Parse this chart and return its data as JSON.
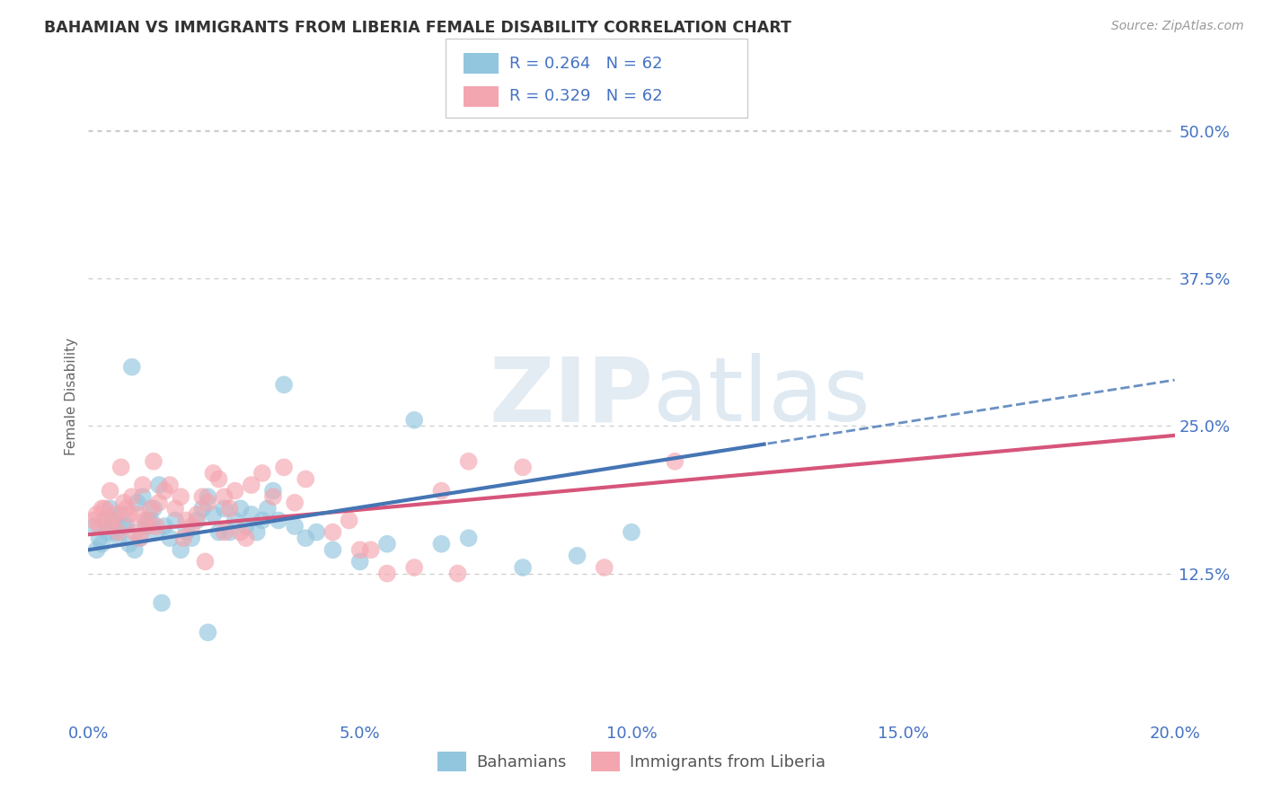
{
  "title": "BAHAMIAN VS IMMIGRANTS FROM LIBERIA FEMALE DISABILITY CORRELATION CHART",
  "source": "Source: ZipAtlas.com",
  "xlabel_vals": [
    0.0,
    5.0,
    10.0,
    15.0,
    20.0
  ],
  "ylabel_vals": [
    12.5,
    25.0,
    37.5,
    50.0
  ],
  "ylabel_labels": [
    "12.5%",
    "25.0%",
    "37.5%",
    "50.0%"
  ],
  "xmin": 0.0,
  "xmax": 20.0,
  "ymin": 0.0,
  "ymax": 55.0,
  "R_blue": 0.264,
  "N_blue": 62,
  "R_pink": 0.329,
  "N_pink": 62,
  "legend_label_blue": "Bahamians",
  "legend_label_pink": "Immigrants from Liberia",
  "blue_color": "#92c5de",
  "pink_color": "#f4a6b0",
  "blue_line_color": "#4575b4",
  "pink_line_color": "#d6557a",
  "blue_line_intercept": 14.5,
  "blue_line_slope": 0.72,
  "pink_line_intercept": 15.8,
  "pink_line_slope": 0.42,
  "blue_solid_end": 12.5,
  "blue_scatter_x": [
    0.1,
    0.2,
    0.3,
    0.4,
    0.5,
    0.6,
    0.7,
    0.8,
    0.9,
    1.0,
    1.1,
    1.2,
    1.3,
    1.4,
    1.5,
    1.6,
    1.7,
    1.8,
    1.9,
    2.0,
    2.1,
    2.2,
    2.3,
    2.4,
    2.5,
    2.6,
    2.7,
    2.8,
    2.9,
    3.0,
    3.1,
    3.2,
    3.3,
    3.4,
    3.5,
    3.6,
    3.8,
    4.0,
    4.2,
    4.5,
    5.0,
    5.5,
    6.0,
    6.5,
    7.0,
    8.0,
    9.0,
    10.0,
    0.15,
    0.25,
    0.35,
    0.45,
    0.55,
    0.65,
    0.75,
    0.85,
    0.95,
    1.05,
    1.15,
    1.25,
    1.35,
    2.2
  ],
  "blue_scatter_y": [
    16.5,
    15.5,
    17.0,
    18.0,
    16.0,
    17.5,
    16.5,
    30.0,
    18.5,
    19.0,
    17.0,
    18.0,
    20.0,
    16.5,
    15.5,
    17.0,
    14.5,
    16.0,
    15.5,
    17.0,
    18.0,
    19.0,
    17.5,
    16.0,
    18.0,
    16.0,
    17.0,
    18.0,
    16.5,
    17.5,
    16.0,
    17.0,
    18.0,
    19.5,
    17.0,
    28.5,
    16.5,
    15.5,
    16.0,
    14.5,
    13.5,
    15.0,
    25.5,
    15.0,
    15.5,
    13.0,
    14.0,
    16.0,
    14.5,
    15.0,
    16.0,
    17.0,
    15.5,
    16.5,
    15.0,
    14.5,
    15.5,
    16.5,
    17.0,
    16.0,
    10.0,
    7.5
  ],
  "pink_scatter_x": [
    0.1,
    0.2,
    0.3,
    0.4,
    0.5,
    0.6,
    0.7,
    0.8,
    0.9,
    1.0,
    1.1,
    1.2,
    1.3,
    1.4,
    1.5,
    1.6,
    1.7,
    1.8,
    1.9,
    2.0,
    2.1,
    2.2,
    2.3,
    2.4,
    2.5,
    2.6,
    2.7,
    2.8,
    2.9,
    3.0,
    3.2,
    3.4,
    3.6,
    3.8,
    4.0,
    4.5,
    5.0,
    5.5,
    6.0,
    6.5,
    7.0,
    8.0,
    9.5,
    0.15,
    0.25,
    0.35,
    0.45,
    0.55,
    0.65,
    0.75,
    0.85,
    0.95,
    1.05,
    1.15,
    1.25,
    1.75,
    2.15,
    4.8,
    5.2,
    6.8,
    10.8,
    2.5
  ],
  "pink_scatter_y": [
    17.0,
    16.5,
    18.0,
    19.5,
    17.5,
    21.5,
    18.0,
    19.0,
    17.5,
    20.0,
    16.5,
    22.0,
    18.5,
    19.5,
    20.0,
    18.0,
    19.0,
    17.0,
    16.5,
    17.5,
    19.0,
    18.5,
    21.0,
    20.5,
    19.0,
    18.0,
    19.5,
    16.0,
    15.5,
    20.0,
    21.0,
    19.0,
    21.5,
    18.5,
    20.5,
    16.0,
    14.5,
    12.5,
    13.0,
    19.5,
    22.0,
    21.5,
    13.0,
    17.5,
    18.0,
    16.5,
    17.0,
    16.0,
    18.5,
    17.5,
    16.0,
    15.5,
    17.0,
    18.0,
    16.5,
    15.5,
    13.5,
    17.0,
    14.5,
    12.5,
    22.0,
    16.0
  ]
}
